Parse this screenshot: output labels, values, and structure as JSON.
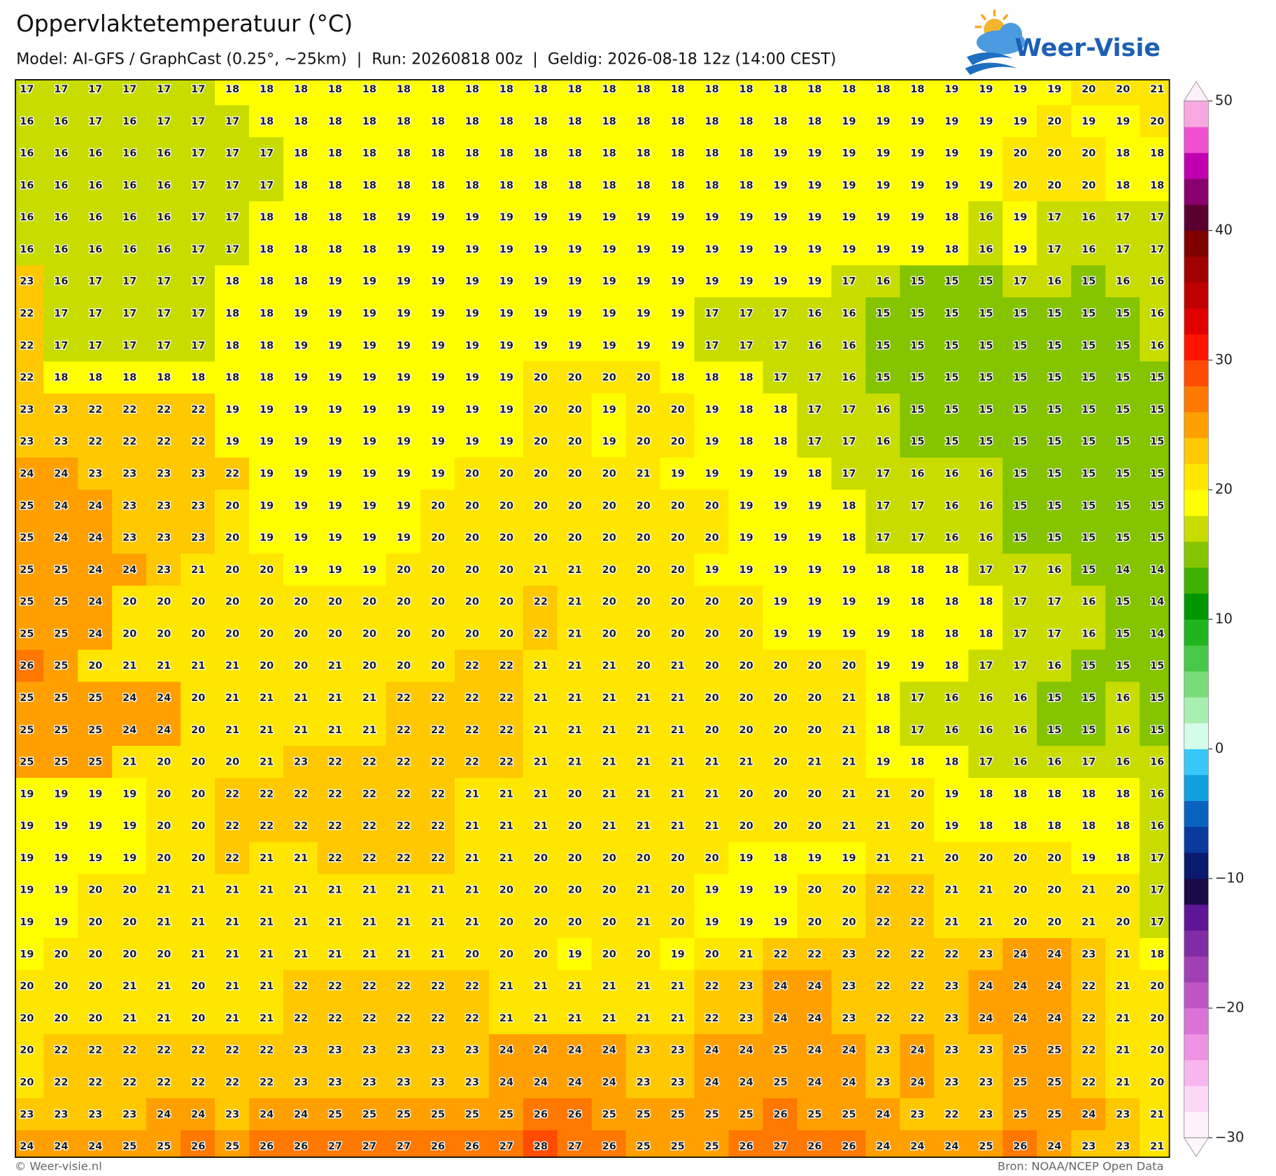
{
  "header": {
    "title": "Oppervlaktetemperatuur (°C)",
    "subtitle": "Model: AI-GFS / GraphCast (0.25°, ~25km)  |  Run: 20260818 00z  |  Geldig: 2026-08-18 12z (14:00 CEST)"
  },
  "logo": {
    "text": "Weer-Visie"
  },
  "grid": {
    "rows": [
      [
        17,
        17,
        17,
        17,
        17,
        17,
        18,
        18,
        18,
        18,
        18,
        18,
        18,
        18,
        18,
        18,
        18,
        18,
        18,
        18,
        18,
        18,
        18,
        18,
        18,
        18,
        18,
        19,
        19,
        19,
        19,
        20,
        20,
        21
      ],
      [
        16,
        16,
        17,
        16,
        17,
        17,
        17,
        18,
        18,
        18,
        18,
        18,
        18,
        18,
        18,
        18,
        18,
        18,
        18,
        18,
        18,
        18,
        18,
        18,
        19,
        19,
        19,
        19,
        19,
        19,
        20,
        19,
        19,
        20
      ],
      [
        16,
        16,
        16,
        16,
        16,
        17,
        17,
        17,
        18,
        18,
        18,
        18,
        18,
        18,
        18,
        18,
        18,
        18,
        18,
        18,
        18,
        18,
        19,
        19,
        19,
        19,
        19,
        19,
        19,
        20,
        20,
        20,
        18,
        18
      ],
      [
        16,
        16,
        16,
        16,
        16,
        17,
        17,
        17,
        18,
        18,
        18,
        18,
        18,
        18,
        18,
        18,
        18,
        18,
        18,
        18,
        18,
        18,
        19,
        19,
        19,
        19,
        19,
        19,
        19,
        20,
        20,
        20,
        18,
        18
      ],
      [
        16,
        16,
        16,
        16,
        16,
        17,
        17,
        18,
        18,
        18,
        18,
        19,
        19,
        19,
        19,
        19,
        19,
        19,
        19,
        19,
        19,
        19,
        19,
        19,
        19,
        19,
        19,
        18,
        16,
        19,
        17,
        16,
        17,
        17
      ],
      [
        16,
        16,
        16,
        16,
        16,
        17,
        17,
        18,
        18,
        18,
        18,
        19,
        19,
        19,
        19,
        19,
        19,
        19,
        19,
        19,
        19,
        19,
        19,
        19,
        19,
        19,
        19,
        18,
        16,
        19,
        17,
        16,
        17,
        17
      ],
      [
        23,
        16,
        17,
        17,
        17,
        17,
        18,
        18,
        18,
        19,
        19,
        19,
        19,
        19,
        19,
        19,
        19,
        19,
        19,
        19,
        19,
        19,
        19,
        19,
        17,
        16,
        15,
        15,
        15,
        17,
        16,
        15,
        16,
        16
      ],
      [
        22,
        17,
        17,
        17,
        17,
        17,
        18,
        18,
        19,
        19,
        19,
        19,
        19,
        19,
        19,
        19,
        19,
        19,
        19,
        19,
        17,
        17,
        17,
        16,
        16,
        15,
        15,
        15,
        15,
        15,
        15,
        15,
        15,
        16
      ],
      [
        22,
        17,
        17,
        17,
        17,
        17,
        18,
        18,
        19,
        19,
        19,
        19,
        19,
        19,
        19,
        19,
        19,
        19,
        19,
        19,
        17,
        17,
        17,
        16,
        16,
        15,
        15,
        15,
        15,
        15,
        15,
        15,
        15,
        16
      ],
      [
        22,
        18,
        18,
        18,
        18,
        18,
        18,
        18,
        19,
        19,
        19,
        19,
        19,
        19,
        19,
        20,
        20,
        20,
        20,
        18,
        18,
        18,
        17,
        17,
        16,
        15,
        15,
        15,
        15,
        15,
        15,
        15,
        15,
        15
      ],
      [
        23,
        23,
        22,
        22,
        22,
        22,
        19,
        19,
        19,
        19,
        19,
        19,
        19,
        19,
        19,
        20,
        20,
        19,
        20,
        20,
        19,
        18,
        18,
        17,
        17,
        16,
        15,
        15,
        15,
        15,
        15,
        15,
        15,
        15
      ],
      [
        23,
        23,
        22,
        22,
        22,
        22,
        19,
        19,
        19,
        19,
        19,
        19,
        19,
        19,
        19,
        20,
        20,
        19,
        20,
        20,
        19,
        18,
        18,
        17,
        17,
        16,
        15,
        15,
        15,
        15,
        15,
        15,
        15,
        15
      ],
      [
        24,
        24,
        23,
        23,
        23,
        23,
        22,
        19,
        19,
        19,
        19,
        19,
        19,
        20,
        20,
        20,
        20,
        20,
        21,
        19,
        19,
        19,
        19,
        18,
        17,
        17,
        16,
        16,
        16,
        15,
        15,
        15,
        15,
        15
      ],
      [
        25,
        24,
        24,
        23,
        23,
        23,
        20,
        19,
        19,
        19,
        19,
        19,
        20,
        20,
        20,
        20,
        20,
        20,
        20,
        20,
        20,
        19,
        19,
        19,
        18,
        17,
        17,
        16,
        16,
        15,
        15,
        15,
        15,
        15
      ],
      [
        25,
        24,
        24,
        23,
        23,
        23,
        20,
        19,
        19,
        19,
        19,
        19,
        20,
        20,
        20,
        20,
        20,
        20,
        20,
        20,
        20,
        19,
        19,
        19,
        18,
        17,
        17,
        16,
        16,
        15,
        15,
        15,
        15,
        15
      ],
      [
        25,
        25,
        24,
        24,
        23,
        21,
        20,
        20,
        19,
        19,
        19,
        20,
        20,
        20,
        20,
        21,
        21,
        20,
        20,
        20,
        19,
        19,
        19,
        19,
        19,
        18,
        18,
        18,
        17,
        17,
        16,
        15,
        14,
        14
      ],
      [
        25,
        25,
        24,
        20,
        20,
        20,
        20,
        20,
        20,
        20,
        20,
        20,
        20,
        20,
        20,
        22,
        21,
        20,
        20,
        20,
        20,
        20,
        19,
        19,
        19,
        19,
        18,
        18,
        18,
        17,
        17,
        16,
        15,
        14
      ],
      [
        25,
        25,
        24,
        20,
        20,
        20,
        20,
        20,
        20,
        20,
        20,
        20,
        20,
        20,
        20,
        22,
        21,
        20,
        20,
        20,
        20,
        20,
        19,
        19,
        19,
        19,
        18,
        18,
        18,
        17,
        17,
        16,
        15,
        14
      ],
      [
        26,
        25,
        20,
        21,
        21,
        21,
        21,
        20,
        20,
        21,
        20,
        20,
        20,
        22,
        22,
        21,
        21,
        21,
        20,
        21,
        20,
        20,
        20,
        20,
        20,
        19,
        19,
        18,
        17,
        17,
        16,
        15,
        15,
        15
      ],
      [
        25,
        25,
        25,
        24,
        24,
        20,
        21,
        21,
        21,
        21,
        21,
        22,
        22,
        22,
        22,
        21,
        21,
        21,
        21,
        21,
        20,
        20,
        20,
        20,
        21,
        18,
        17,
        16,
        16,
        16,
        15,
        15,
        16,
        15
      ],
      [
        25,
        25,
        25,
        24,
        24,
        20,
        21,
        21,
        21,
        21,
        21,
        22,
        22,
        22,
        22,
        21,
        21,
        21,
        21,
        21,
        20,
        20,
        20,
        20,
        21,
        18,
        17,
        16,
        16,
        16,
        15,
        15,
        16,
        15
      ],
      [
        25,
        25,
        25,
        21,
        20,
        20,
        20,
        21,
        23,
        22,
        22,
        22,
        22,
        22,
        22,
        21,
        21,
        21,
        21,
        21,
        21,
        21,
        20,
        21,
        21,
        19,
        18,
        18,
        17,
        16,
        16,
        17,
        16,
        16
      ],
      [
        19,
        19,
        19,
        19,
        20,
        20,
        22,
        22,
        22,
        22,
        22,
        22,
        22,
        21,
        21,
        21,
        20,
        21,
        21,
        21,
        21,
        20,
        20,
        20,
        21,
        21,
        20,
        19,
        18,
        18,
        18,
        18,
        18,
        16
      ],
      [
        19,
        19,
        19,
        19,
        20,
        20,
        22,
        22,
        22,
        22,
        22,
        22,
        22,
        21,
        21,
        21,
        20,
        21,
        21,
        21,
        21,
        20,
        20,
        20,
        21,
        21,
        20,
        19,
        18,
        18,
        18,
        18,
        18,
        16
      ],
      [
        19,
        19,
        19,
        19,
        20,
        20,
        22,
        21,
        21,
        22,
        22,
        22,
        22,
        21,
        21,
        20,
        20,
        20,
        20,
        20,
        20,
        19,
        18,
        19,
        19,
        21,
        21,
        20,
        20,
        20,
        20,
        19,
        18,
        17
      ],
      [
        19,
        19,
        20,
        20,
        21,
        21,
        21,
        21,
        21,
        21,
        21,
        21,
        21,
        21,
        20,
        20,
        20,
        20,
        21,
        20,
        19,
        19,
        19,
        20,
        20,
        22,
        22,
        21,
        21,
        20,
        20,
        21,
        20,
        17
      ],
      [
        19,
        19,
        20,
        20,
        21,
        21,
        21,
        21,
        21,
        21,
        21,
        21,
        21,
        21,
        20,
        20,
        20,
        20,
        21,
        20,
        19,
        19,
        19,
        20,
        20,
        22,
        22,
        21,
        21,
        20,
        20,
        21,
        20,
        17
      ],
      [
        19,
        20,
        20,
        20,
        20,
        21,
        21,
        21,
        21,
        21,
        21,
        21,
        21,
        20,
        20,
        20,
        19,
        20,
        20,
        19,
        20,
        21,
        22,
        22,
        23,
        22,
        22,
        22,
        23,
        24,
        24,
        23,
        21,
        18
      ],
      [
        20,
        20,
        20,
        21,
        21,
        20,
        21,
        21,
        22,
        22,
        22,
        22,
        22,
        22,
        21,
        21,
        21,
        21,
        21,
        21,
        22,
        23,
        24,
        24,
        23,
        22,
        22,
        23,
        24,
        24,
        24,
        22,
        21,
        20
      ],
      [
        20,
        20,
        20,
        21,
        21,
        20,
        21,
        21,
        22,
        22,
        22,
        22,
        22,
        22,
        21,
        21,
        21,
        21,
        21,
        21,
        22,
        23,
        24,
        24,
        23,
        22,
        22,
        23,
        24,
        24,
        24,
        22,
        21,
        20
      ],
      [
        20,
        22,
        22,
        22,
        22,
        22,
        22,
        22,
        23,
        23,
        23,
        23,
        23,
        23,
        24,
        24,
        24,
        24,
        23,
        23,
        24,
        24,
        25,
        24,
        24,
        23,
        24,
        23,
        23,
        25,
        25,
        22,
        21,
        20
      ],
      [
        20,
        22,
        22,
        22,
        22,
        22,
        22,
        22,
        23,
        23,
        23,
        23,
        23,
        23,
        24,
        24,
        24,
        24,
        23,
        23,
        24,
        24,
        25,
        24,
        24,
        23,
        24,
        23,
        23,
        25,
        25,
        22,
        21,
        20
      ],
      [
        23,
        23,
        23,
        23,
        24,
        24,
        23,
        24,
        24,
        25,
        25,
        25,
        25,
        25,
        25,
        26,
        26,
        25,
        25,
        25,
        25,
        25,
        26,
        25,
        25,
        24,
        23,
        22,
        23,
        25,
        25,
        24,
        23,
        21
      ],
      [
        24,
        24,
        24,
        25,
        25,
        26,
        25,
        26,
        26,
        27,
        27,
        27,
        26,
        26,
        27,
        28,
        27,
        26,
        25,
        25,
        25,
        26,
        27,
        26,
        26,
        24,
        24,
        24,
        25,
        26,
        24,
        23,
        23,
        21
      ]
    ]
  },
  "colorbar": {
    "lim": [
      -30,
      50
    ],
    "ticks": [
      {
        "value": -30,
        "label": "−30"
      },
      {
        "value": -20,
        "label": "−20"
      },
      {
        "value": -10,
        "label": "−10"
      },
      0,
      10,
      20,
      30,
      40,
      50
    ],
    "colors": [
      "#fdf2fb",
      "#fcd8f5",
      "#f8b6ee",
      "#ee92e4",
      "#da72d8",
      "#c056c6",
      "#a040b4",
      "#802ca4",
      "#5e1696",
      "#1c0a48",
      "#0a1a6e",
      "#0a3a9e",
      "#0a62c0",
      "#10a0e0",
      "#38c8f8",
      "#d4fce8",
      "#a8eeb0",
      "#78dc78",
      "#48c848",
      "#20b420",
      "#009600",
      "#40b000",
      "#84c400",
      "#c8dc00",
      "#ffff00",
      "#ffe600",
      "#ffc800",
      "#ffa000",
      "#ff7800",
      "#ff4c00",
      "#ff1400",
      "#e00000",
      "#c00000",
      "#a00000",
      "#800000",
      "#5a0030",
      "#8a006e",
      "#c000b0",
      "#f050d0",
      "#f8a8e0"
    ]
  },
  "footer": {
    "left": "© Weer-visie.nl",
    "right": "Bron: NOAA/NCEP Open Data"
  }
}
